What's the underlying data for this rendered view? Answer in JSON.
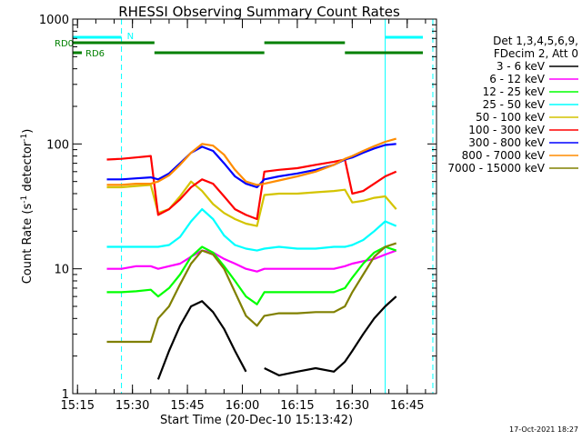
{
  "chart_data": {
    "type": "line",
    "title": "RHESSI Observing Summary Count Rates",
    "xlabel": "Start Time (20-Dec-10 15:13:42)",
    "ylabel": "Count Rate (s⁻¹ detector⁻¹)",
    "ylabel_main": "Count Rate (s",
    "ylabel_sup1": "-1",
    "ylabel_mid": " detector",
    "ylabel_sup2": "-1",
    "ylabel_end": ")",
    "y_scale": "log",
    "ylim": [
      1,
      1000
    ],
    "xlim": [
      "15:13:42",
      "16:53:00"
    ],
    "x_ticks": [
      "15:15",
      "15:30",
      "15:45",
      "16:00",
      "16:15",
      "16:30",
      "16:45"
    ],
    "y_ticks": [
      "1",
      "10",
      "100",
      "1000"
    ],
    "legend_header": [
      "Det 1,3,4,5,6,9,",
      "FDecim 2, Att 0"
    ],
    "legend_position": "right",
    "footer_date": "17-Oct-2021 18:27",
    "x": [
      "15:23",
      "15:27",
      "15:31",
      "15:35",
      "15:37",
      "15:40",
      "15:43",
      "15:46",
      "15:49",
      "15:52",
      "15:55",
      "15:58",
      "16:01",
      "16:04",
      "16:06",
      "16:10",
      "16:15",
      "16:20",
      "16:25",
      "16:28",
      "16:30",
      "16:33",
      "16:36",
      "16:39",
      "16:42"
    ],
    "series": [
      {
        "name": "3 - 6 keV",
        "color": "#000000",
        "values": [
          null,
          null,
          null,
          null,
          1.3,
          2.2,
          3.5,
          5,
          5.5,
          4.5,
          3.3,
          2.2,
          1.5,
          null,
          1.6,
          1.4,
          1.5,
          1.6,
          1.5,
          1.8,
          2.2,
          3,
          4,
          5,
          6
        ]
      },
      {
        "name": "6 - 12 keV",
        "color": "#ff00ff",
        "values": [
          10,
          10,
          10.5,
          10.5,
          10,
          10.5,
          11,
          12.5,
          14,
          13.5,
          12,
          11,
          10,
          9.5,
          10,
          10,
          10,
          10,
          10,
          10.5,
          11,
          11.5,
          12,
          13,
          14
        ]
      },
      {
        "name": "12 - 25 keV",
        "color": "#00ff00",
        "values": [
          6.5,
          6.5,
          6.6,
          6.8,
          6,
          7,
          9,
          12.5,
          15,
          13.5,
          10.5,
          8,
          6,
          5.2,
          6.5,
          6.5,
          6.5,
          6.5,
          6.5,
          7,
          8.5,
          11,
          13.5,
          15,
          14
        ]
      },
      {
        "name": "25 - 50 keV",
        "color": "#00ffff",
        "values": [
          15,
          15,
          15,
          15,
          15,
          15.5,
          18,
          24,
          30,
          25,
          18.5,
          15.5,
          14.5,
          14,
          14.5,
          15,
          14.5,
          14.5,
          15,
          15,
          15.5,
          17,
          20,
          24,
          22
        ]
      },
      {
        "name": "50 - 100 keV",
        "color": "#d4c400",
        "values": [
          45,
          45,
          46,
          47,
          28,
          30,
          38,
          50,
          42,
          33,
          28,
          25,
          23,
          22,
          39,
          40,
          40,
          41,
          42,
          43,
          34,
          35,
          37,
          38,
          30
        ]
      },
      {
        "name": "100 - 300 keV",
        "color": "#ff0000",
        "values": [
          75,
          76,
          78,
          80,
          27,
          30,
          36,
          45,
          52,
          48,
          38,
          30,
          27,
          25,
          60,
          62,
          64,
          68,
          72,
          75,
          40,
          42,
          48,
          55,
          60
        ]
      },
      {
        "name": "300 - 800 keV",
        "color": "#0000ff",
        "values": [
          52,
          52,
          53,
          54,
          52,
          58,
          70,
          85,
          95,
          88,
          70,
          55,
          48,
          45,
          52,
          55,
          58,
          62,
          68,
          75,
          78,
          85,
          92,
          98,
          100
        ]
      },
      {
        "name": "800 - 7000 keV",
        "color": "#ff8c00",
        "values": [
          47,
          47,
          48,
          48,
          50,
          56,
          68,
          85,
          100,
          97,
          82,
          62,
          50,
          47,
          48,
          51,
          55,
          60,
          68,
          76,
          80,
          88,
          96,
          104,
          110
        ]
      },
      {
        "name": "7000 - 15000 keV",
        "color": "#808000",
        "values": [
          2.6,
          2.6,
          2.6,
          2.6,
          4,
          5,
          7.5,
          11,
          14,
          13,
          10,
          6.5,
          4.2,
          3.5,
          4.2,
          4.4,
          4.4,
          4.5,
          4.5,
          5,
          6.5,
          9,
          12.5,
          15,
          16
        ]
      }
    ],
    "segments": [
      {
        "name": "N",
        "type": "nighttime",
        "color": "#00ffff",
        "intervals": [
          [
            "15:13:42",
            "15:27"
          ],
          [
            "16:39",
            "16:53"
          ]
        ]
      },
      {
        "name": "RD0",
        "type": "radiation",
        "color": "#008000",
        "intervals": [
          [
            "15:13:42",
            "15:36"
          ],
          [
            "16:06",
            "16:28"
          ]
        ]
      },
      {
        "name": "RD6",
        "type": "radiation",
        "color": "#008000",
        "intervals": [
          [
            "15:36",
            "16:06"
          ],
          [
            "16:28",
            "16:52"
          ]
        ]
      }
    ],
    "markers": [
      {
        "style": "solid",
        "color": "#00ffff",
        "times": [
          "15:13:42",
          "16:39"
        ]
      },
      {
        "style": "dashed",
        "color": "#00ffff",
        "times": [
          "15:27",
          "16:52"
        ]
      }
    ]
  }
}
